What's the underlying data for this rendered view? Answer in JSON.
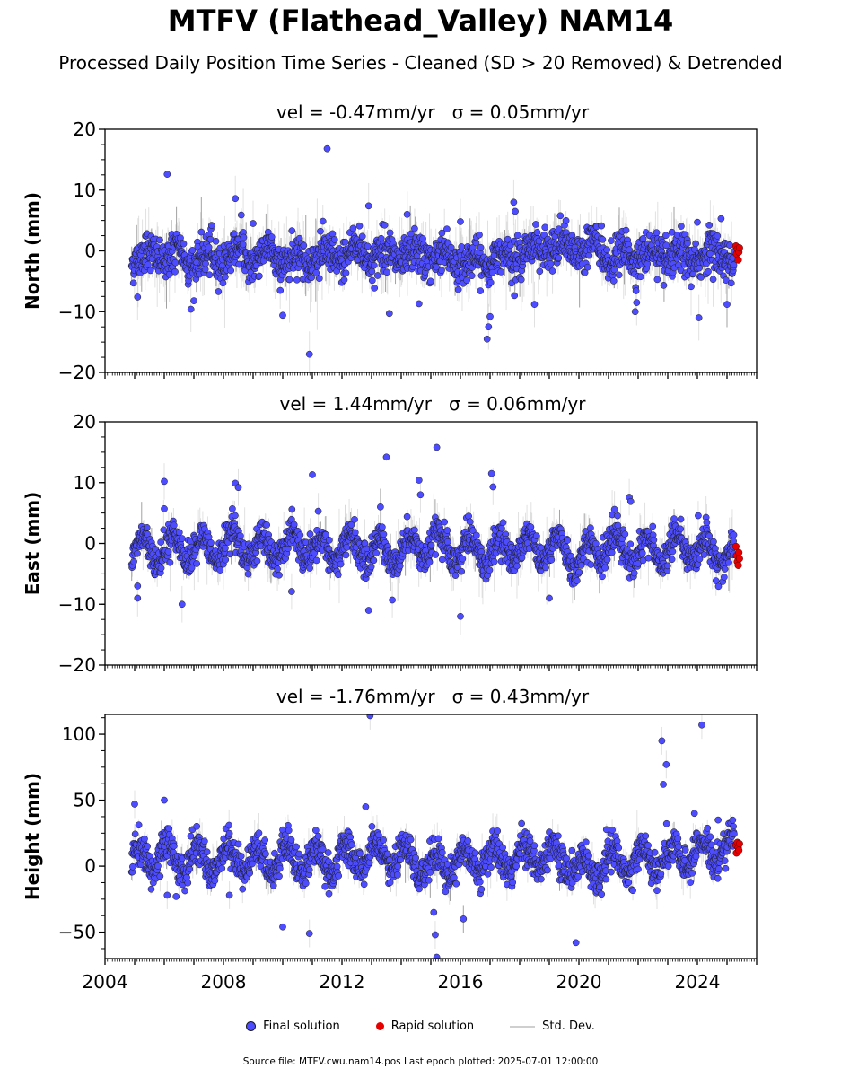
{
  "title": "MTFV (Flathead_Valley) NAM14",
  "subtitle": "Processed Daily Position Time Series - Cleaned (SD > 20 Removed) & Detrended",
  "legend": {
    "final": "Final solution",
    "rapid": "Rapid solution",
    "std": "Std. Dev."
  },
  "source_note": "Source file: MTFV.cwu.nam14.pos  Last epoch plotted: 2025-07-01 12:00:00",
  "colors": {
    "final": "#4d4dff",
    "rapid": "#e60000",
    "std": "#c8c8c8",
    "edge": "#1a1a1a"
  },
  "chart_data": {
    "type": "scatter",
    "x_ticks": [
      2004,
      2008,
      2012,
      2016,
      2020,
      2024
    ],
    "x_tick_labels": [
      "2004",
      "2008",
      "2012",
      "2016",
      "2020",
      "2024"
    ],
    "xlim": [
      2004.0,
      2026.0
    ],
    "panels": [
      {
        "name": "north",
        "ylabel": "North (mm)",
        "stats": "vel = -0.47mm/yr   σ = 0.05mm/yr",
        "ylim": [
          -20,
          20
        ],
        "yticks": [
          20,
          10,
          0,
          -10,
          -20
        ],
        "ytick_labels": [
          "20",
          "10",
          "0",
          "−10",
          "−20"
        ],
        "amplitude": 1.2,
        "scatter_sd": 1.6,
        "std_dev_typical": 2.5,
        "final_series": [
          [
            2005.0,
            -0.8
          ],
          [
            2005.5,
            -1.0
          ],
          [
            2006.0,
            -0.5
          ],
          [
            2006.5,
            -0.9
          ],
          [
            2007.0,
            -1.5
          ],
          [
            2007.5,
            -1.8
          ],
          [
            2008.0,
            -0.9
          ],
          [
            2008.5,
            -0.7
          ],
          [
            2009.0,
            -1.0
          ],
          [
            2009.5,
            -0.6
          ],
          [
            2010.0,
            -1.2
          ],
          [
            2010.5,
            -1.4
          ],
          [
            2011.0,
            -0.9
          ],
          [
            2011.5,
            -1.3
          ],
          [
            2012.0,
            -0.7
          ],
          [
            2012.5,
            0.1
          ],
          [
            2013.0,
            -0.8
          ],
          [
            2013.5,
            -0.4
          ],
          [
            2014.0,
            -0.9
          ],
          [
            2014.5,
            -1.1
          ],
          [
            2015.0,
            -0.6
          ],
          [
            2015.5,
            -1.0
          ],
          [
            2016.0,
            -1.7
          ],
          [
            2016.5,
            -2.2
          ],
          [
            2017.0,
            -1.6
          ],
          [
            2017.5,
            -0.7
          ],
          [
            2018.0,
            -0.4
          ],
          [
            2018.5,
            0.1
          ],
          [
            2019.0,
            0.6
          ],
          [
            2019.5,
            0.3
          ],
          [
            2020.0,
            0.4
          ],
          [
            2020.5,
            1.0
          ],
          [
            2021.0,
            -1.2
          ],
          [
            2021.5,
            -1.0
          ],
          [
            2022.0,
            -0.5
          ],
          [
            2022.5,
            -1.1
          ],
          [
            2023.0,
            -0.8
          ],
          [
            2023.5,
            -1.4
          ],
          [
            2024.0,
            -0.9
          ],
          [
            2024.5,
            -0.4
          ],
          [
            2025.0,
            -0.7
          ]
        ],
        "outliers": [
          [
            2005.1,
            -7.6
          ],
          [
            2006.1,
            12.6
          ],
          [
            2006.9,
            -9.6
          ],
          [
            2007.6,
            4.2
          ],
          [
            2008.4,
            8.6
          ],
          [
            2008.6,
            5.9
          ],
          [
            2009.0,
            4.5
          ],
          [
            2010.0,
            -10.6
          ],
          [
            2010.9,
            -17.0
          ],
          [
            2011.5,
            16.8
          ],
          [
            2012.9,
            7.4
          ],
          [
            2013.6,
            -10.3
          ],
          [
            2014.2,
            6.0
          ],
          [
            2014.6,
            -8.7
          ],
          [
            2016.0,
            4.8
          ],
          [
            2016.9,
            -14.5
          ],
          [
            2016.95,
            -12.5
          ],
          [
            2017.0,
            -10.8
          ],
          [
            2017.8,
            8.0
          ],
          [
            2017.85,
            6.5
          ],
          [
            2018.5,
            -8.8
          ],
          [
            2021.9,
            -10.0
          ],
          [
            2021.95,
            -8.5
          ],
          [
            2024.0,
            4.7
          ],
          [
            2024.05,
            -11.0
          ],
          [
            2024.8,
            5.3
          ],
          [
            2025.0,
            -8.8
          ]
        ],
        "rapid": [
          [
            2025.3,
            0.8
          ],
          [
            2025.32,
            -0.5
          ],
          [
            2025.35,
            0.3
          ],
          [
            2025.38,
            -1.5
          ],
          [
            2025.4,
            -0.2
          ],
          [
            2025.42,
            0.5
          ]
        ]
      },
      {
        "name": "east",
        "ylabel": "East (mm)",
        "stats": "vel = 1.44mm/yr   σ = 0.06mm/yr",
        "ylim": [
          -20,
          20
        ],
        "yticks": [
          20,
          10,
          0,
          -10,
          -20
        ],
        "ytick_labels": [
          "20",
          "10",
          "0",
          "−10",
          "−20"
        ],
        "amplitude": 2.2,
        "scatter_sd": 1.3,
        "std_dev_typical": 2.0,
        "final_series": [
          [
            2005.0,
            -1.0
          ],
          [
            2005.5,
            -1.2
          ],
          [
            2006.0,
            -0.6
          ],
          [
            2006.5,
            -0.5
          ],
          [
            2007.0,
            -1.0
          ],
          [
            2007.5,
            -1.3
          ],
          [
            2008.0,
            -0.4
          ],
          [
            2008.5,
            0.2
          ],
          [
            2009.0,
            -0.8
          ],
          [
            2009.5,
            -1.3
          ],
          [
            2010.0,
            -0.6
          ],
          [
            2010.5,
            0.0
          ],
          [
            2011.0,
            -1.5
          ],
          [
            2011.5,
            -1.4
          ],
          [
            2012.0,
            -0.8
          ],
          [
            2012.5,
            -0.6
          ],
          [
            2013.0,
            -1.2
          ],
          [
            2013.5,
            -1.6
          ],
          [
            2014.0,
            -1.0
          ],
          [
            2014.5,
            -0.5
          ],
          [
            2015.0,
            0.0
          ],
          [
            2015.5,
            -0.8
          ],
          [
            2016.0,
            -1.5
          ],
          [
            2016.5,
            -0.3
          ],
          [
            2017.0,
            -2.0
          ],
          [
            2017.5,
            -0.8
          ],
          [
            2018.0,
            -0.2
          ],
          [
            2018.5,
            -0.4
          ],
          [
            2019.0,
            -0.8
          ],
          [
            2019.5,
            -1.0
          ],
          [
            2020.0,
            -3.2
          ],
          [
            2020.5,
            -1.2
          ],
          [
            2021.0,
            -0.4
          ],
          [
            2021.5,
            -0.9
          ],
          [
            2022.0,
            -1.1
          ],
          [
            2022.5,
            -1.4
          ],
          [
            2023.0,
            -1.0
          ],
          [
            2023.5,
            -0.6
          ],
          [
            2024.0,
            -0.8
          ],
          [
            2024.5,
            -1.2
          ],
          [
            2025.0,
            -2.0
          ]
        ],
        "outliers": [
          [
            2005.1,
            -9.0
          ],
          [
            2005.1,
            -7.0
          ],
          [
            2006.0,
            10.2
          ],
          [
            2006.0,
            5.7
          ],
          [
            2006.6,
            -10.0
          ],
          [
            2008.4,
            9.9
          ],
          [
            2008.5,
            9.2
          ],
          [
            2008.3,
            5.7
          ],
          [
            2010.3,
            -7.9
          ],
          [
            2011.0,
            11.3
          ],
          [
            2011.2,
            5.3
          ],
          [
            2012.9,
            -11.0
          ],
          [
            2013.3,
            6.0
          ],
          [
            2013.5,
            14.2
          ],
          [
            2013.7,
            -9.3
          ],
          [
            2014.6,
            10.4
          ],
          [
            2014.65,
            8.0
          ],
          [
            2015.2,
            15.8
          ],
          [
            2016.0,
            -12.0
          ],
          [
            2017.05,
            11.5
          ],
          [
            2017.1,
            9.3
          ],
          [
            2019.0,
            -9.0
          ],
          [
            2021.7,
            7.6
          ],
          [
            2021.75,
            6.9
          ],
          [
            2021.2,
            5.6
          ]
        ],
        "rapid": [
          [
            2025.3,
            -0.5
          ],
          [
            2025.32,
            -2.0
          ],
          [
            2025.35,
            -3.0
          ],
          [
            2025.38,
            -3.6
          ],
          [
            2025.4,
            -1.5
          ],
          [
            2025.42,
            -2.5
          ]
        ]
      },
      {
        "name": "height",
        "ylabel": "Height (mm)",
        "stats": "vel = -1.76mm/yr   σ = 0.43mm/yr",
        "ylim": [
          -70,
          115
        ],
        "yticks": [
          100,
          50,
          0,
          -50
        ],
        "ytick_labels": [
          "100",
          "50",
          "0",
          "−50"
        ],
        "amplitude": 10.0,
        "scatter_sd": 6.5,
        "std_dev_typical": 7.0,
        "final_series": [
          [
            2005.0,
            4
          ],
          [
            2005.5,
            6
          ],
          [
            2006.0,
            8
          ],
          [
            2006.5,
            4
          ],
          [
            2007.0,
            7
          ],
          [
            2007.5,
            3
          ],
          [
            2008.0,
            6
          ],
          [
            2008.5,
            8
          ],
          [
            2009.0,
            4
          ],
          [
            2009.5,
            5
          ],
          [
            2010.0,
            7
          ],
          [
            2010.5,
            6
          ],
          [
            2011.0,
            4
          ],
          [
            2011.5,
            3
          ],
          [
            2012.0,
            5
          ],
          [
            2012.5,
            6
          ],
          [
            2013.0,
            7
          ],
          [
            2013.5,
            8
          ],
          [
            2014.0,
            5
          ],
          [
            2014.5,
            2
          ],
          [
            2015.0,
            0
          ],
          [
            2015.5,
            3
          ],
          [
            2016.0,
            4
          ],
          [
            2016.5,
            6
          ],
          [
            2017.0,
            5
          ],
          [
            2017.5,
            6
          ],
          [
            2018.0,
            7
          ],
          [
            2018.5,
            8
          ],
          [
            2019.0,
            9
          ],
          [
            2019.5,
            6
          ],
          [
            2020.0,
            -4
          ],
          [
            2020.5,
            -2
          ],
          [
            2021.0,
            2
          ],
          [
            2021.5,
            4
          ],
          [
            2022.0,
            5
          ],
          [
            2022.5,
            6
          ],
          [
            2023.0,
            4
          ],
          [
            2023.5,
            8
          ],
          [
            2024.0,
            10
          ],
          [
            2024.5,
            13
          ],
          [
            2025.0,
            14
          ]
        ],
        "outliers": [
          [
            2005.0,
            47
          ],
          [
            2006.0,
            50
          ],
          [
            2006.1,
            -22
          ],
          [
            2006.4,
            -23
          ],
          [
            2008.2,
            -22
          ],
          [
            2010.0,
            -46
          ],
          [
            2010.9,
            -51
          ],
          [
            2012.8,
            45
          ],
          [
            2012.95,
            114
          ],
          [
            2015.1,
            -35
          ],
          [
            2015.15,
            -52
          ],
          [
            2015.2,
            -69
          ],
          [
            2016.1,
            -40
          ],
          [
            2019.9,
            -58
          ],
          [
            2022.8,
            95
          ],
          [
            2022.85,
            62
          ],
          [
            2022.95,
            77
          ],
          [
            2023.9,
            40
          ],
          [
            2024.15,
            107
          ],
          [
            2024.7,
            35
          ]
        ],
        "rapid": [
          [
            2025.3,
            16
          ],
          [
            2025.32,
            10
          ],
          [
            2025.35,
            18
          ],
          [
            2025.38,
            14
          ],
          [
            2025.4,
            12
          ],
          [
            2025.42,
            17
          ]
        ]
      }
    ]
  }
}
